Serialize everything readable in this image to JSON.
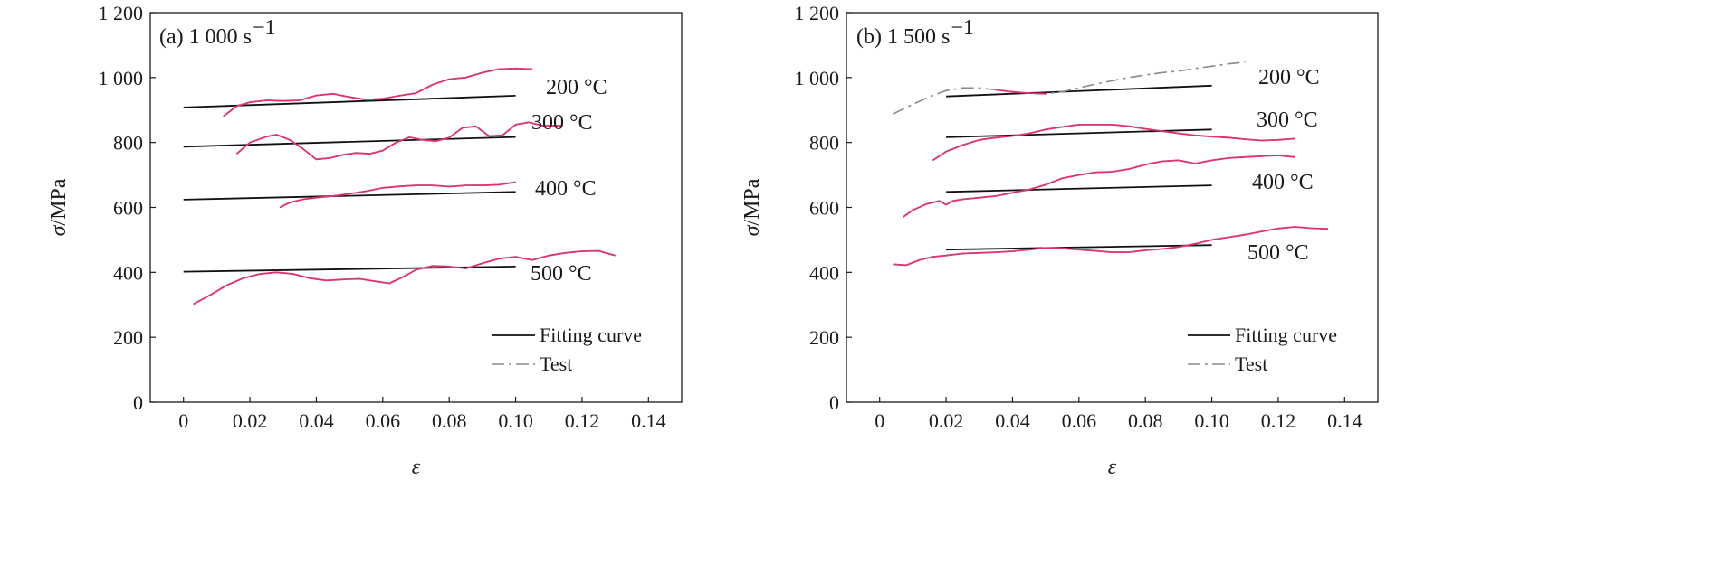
{
  "chart_data": [
    {
      "type": "line",
      "title": "(a) 1 000 s",
      "title_sup": "−1",
      "xlabel": "ε",
      "ylabel": "σ/MPa",
      "xlim": [
        -0.01,
        0.15
      ],
      "ylim": [
        0,
        1200
      ],
      "xticks": [
        0,
        0.02,
        0.04,
        0.06,
        0.08,
        0.1,
        0.12,
        0.14
      ],
      "xtick_labels": [
        "0",
        "0.02",
        "0.04",
        "0.06",
        "0.08",
        "0.10",
        "0.12",
        "0.14"
      ],
      "yticks": [
        0,
        200,
        400,
        600,
        800,
        1000,
        1200
      ],
      "ytick_labels": [
        "0",
        "200",
        "400",
        "600",
        "800",
        "1 000",
        "1 200"
      ],
      "legend": {
        "position": "bottom-right",
        "entries": [
          "Fitting curve",
          "Test"
        ]
      },
      "series": [
        {
          "name": "200 °C",
          "kind": "fit",
          "x": [
            0,
            0.1
          ],
          "y": [
            908,
            944
          ]
        },
        {
          "name": "300 °C",
          "kind": "fit",
          "x": [
            0,
            0.1
          ],
          "y": [
            787,
            817
          ]
        },
        {
          "name": "400 °C",
          "kind": "fit",
          "x": [
            0,
            0.1
          ],
          "y": [
            624,
            648
          ]
        },
        {
          "name": "500 °C",
          "kind": "fit",
          "x": [
            0,
            0.1
          ],
          "y": [
            402,
            418
          ]
        },
        {
          "name": "200 °C",
          "kind": "test",
          "x": [
            0.012,
            0.016,
            0.02,
            0.025,
            0.03,
            0.035,
            0.04,
            0.045,
            0.05,
            0.055,
            0.06,
            0.065,
            0.07,
            0.075,
            0.08,
            0.085,
            0.09,
            0.095,
            0.1,
            0.105
          ],
          "y": [
            880,
            912,
            924,
            930,
            928,
            930,
            945,
            950,
            940,
            932,
            935,
            944,
            952,
            978,
            995,
            1000,
            1015,
            1026,
            1028,
            1026
          ]
        },
        {
          "name": "300 °C",
          "kind": "test",
          "x": [
            0.016,
            0.02,
            0.025,
            0.028,
            0.032,
            0.036,
            0.04,
            0.044,
            0.048,
            0.052,
            0.056,
            0.06,
            0.064,
            0.068,
            0.072,
            0.076,
            0.08,
            0.084,
            0.088,
            0.092,
            0.096,
            0.1,
            0.104,
            0.108,
            0.114
          ],
          "y": [
            765,
            800,
            818,
            824,
            808,
            780,
            748,
            752,
            762,
            768,
            765,
            775,
            800,
            816,
            808,
            804,
            815,
            845,
            850,
            820,
            822,
            855,
            862,
            852,
            852
          ]
        },
        {
          "name": "400 °C",
          "kind": "test",
          "x": [
            0.029,
            0.032,
            0.036,
            0.04,
            0.045,
            0.05,
            0.055,
            0.06,
            0.065,
            0.07,
            0.075,
            0.08,
            0.085,
            0.09,
            0.095,
            0.1
          ],
          "y": [
            600,
            615,
            625,
            630,
            635,
            642,
            650,
            660,
            665,
            668,
            668,
            664,
            668,
            668,
            670,
            678
          ]
        },
        {
          "name": "500 °C",
          "kind": "test",
          "x": [
            0.003,
            0.008,
            0.013,
            0.018,
            0.023,
            0.028,
            0.033,
            0.038,
            0.043,
            0.048,
            0.053,
            0.058,
            0.062,
            0.066,
            0.07,
            0.075,
            0.08,
            0.085,
            0.09,
            0.095,
            0.1,
            0.105,
            0.11,
            0.115,
            0.12,
            0.125,
            0.13
          ],
          "y": [
            302,
            330,
            360,
            382,
            395,
            400,
            395,
            382,
            375,
            378,
            380,
            372,
            366,
            385,
            408,
            420,
            418,
            412,
            428,
            442,
            448,
            438,
            452,
            460,
            465,
            466,
            452
          ]
        }
      ],
      "annotations": [
        "200 °C",
        "300 °C",
        "400 °C",
        "500 °C"
      ]
    },
    {
      "type": "line",
      "title": "(b) 1 500 s",
      "title_sup": "−1",
      "xlabel": "ε",
      "ylabel": "σ/MPa",
      "xlim": [
        -0.01,
        0.15
      ],
      "ylim": [
        0,
        1200
      ],
      "xticks": [
        0,
        0.02,
        0.04,
        0.06,
        0.08,
        0.1,
        0.12,
        0.14
      ],
      "xtick_labels": [
        "0",
        "0.02",
        "0.04",
        "0.06",
        "0.08",
        "0.10",
        "0.12",
        "0.14"
      ],
      "yticks": [
        0,
        200,
        400,
        600,
        800,
        1000,
        1200
      ],
      "ytick_labels": [
        "0",
        "200",
        "400",
        "600",
        "800",
        "1 000",
        "1 200"
      ],
      "legend": {
        "position": "bottom-right",
        "entries": [
          "Fitting curve",
          "Test"
        ]
      },
      "series": [
        {
          "name": "200 °C",
          "kind": "fit",
          "x": [
            0.02,
            0.1
          ],
          "y": [
            942,
            975
          ]
        },
        {
          "name": "300 °C",
          "kind": "fit",
          "x": [
            0.02,
            0.1
          ],
          "y": [
            816,
            840
          ]
        },
        {
          "name": "400 °C",
          "kind": "fit",
          "x": [
            0.02,
            0.1
          ],
          "y": [
            648,
            668
          ]
        },
        {
          "name": "500 °C",
          "kind": "fit",
          "x": [
            0.02,
            0.1
          ],
          "y": [
            470,
            484
          ]
        },
        {
          "name": "200 °C",
          "kind": "test",
          "x": [
            0.004,
            0.01,
            0.016,
            0.02,
            0.025,
            0.03,
            0.035,
            0.04,
            0.045,
            0.05,
            0.055,
            0.06,
            0.065,
            0.07,
            0.075,
            0.08,
            0.085,
            0.09,
            0.095,
            0.1,
            0.105,
            0.11
          ],
          "y": [
            888,
            918,
            945,
            960,
            968,
            968,
            962,
            956,
            952,
            950,
            956,
            968,
            980,
            990,
            1000,
            1008,
            1015,
            1020,
            1028,
            1035,
            1042,
            1048
          ]
        },
        {
          "name": "300 °C",
          "kind": "test",
          "x": [
            0.016,
            0.02,
            0.025,
            0.03,
            0.035,
            0.04,
            0.045,
            0.05,
            0.055,
            0.06,
            0.065,
            0.07,
            0.075,
            0.08,
            0.085,
            0.09,
            0.095,
            0.1,
            0.105,
            0.11,
            0.115,
            0.12,
            0.125
          ],
          "y": [
            745,
            772,
            792,
            808,
            815,
            820,
            828,
            840,
            848,
            855,
            855,
            855,
            850,
            842,
            835,
            828,
            822,
            818,
            815,
            810,
            806,
            808,
            812
          ]
        },
        {
          "name": "400 °C",
          "kind": "test",
          "x": [
            0.007,
            0.01,
            0.014,
            0.018,
            0.02,
            0.022,
            0.025,
            0.03,
            0.035,
            0.04,
            0.045,
            0.05,
            0.055,
            0.06,
            0.065,
            0.07,
            0.075,
            0.08,
            0.085,
            0.09,
            0.095,
            0.1,
            0.105,
            0.11,
            0.115,
            0.12,
            0.125
          ],
          "y": [
            570,
            592,
            610,
            620,
            608,
            620,
            625,
            630,
            635,
            645,
            655,
            670,
            690,
            700,
            708,
            710,
            718,
            732,
            742,
            745,
            735,
            745,
            752,
            755,
            758,
            760,
            755
          ]
        },
        {
          "name": "500 °C",
          "kind": "test",
          "x": [
            0.004,
            0.008,
            0.012,
            0.016,
            0.02,
            0.025,
            0.03,
            0.035,
            0.04,
            0.045,
            0.05,
            0.055,
            0.06,
            0.065,
            0.07,
            0.075,
            0.08,
            0.085,
            0.09,
            0.095,
            0.1,
            0.105,
            0.11,
            0.115,
            0.12,
            0.125,
            0.13,
            0.135
          ],
          "y": [
            425,
            422,
            438,
            448,
            452,
            458,
            460,
            462,
            465,
            470,
            475,
            474,
            470,
            466,
            462,
            462,
            468,
            472,
            478,
            488,
            500,
            508,
            516,
            526,
            535,
            540,
            536,
            534
          ]
        }
      ],
      "annotations": [
        "200 °C",
        "300 °C",
        "400 °C",
        "500 °C"
      ]
    }
  ]
}
